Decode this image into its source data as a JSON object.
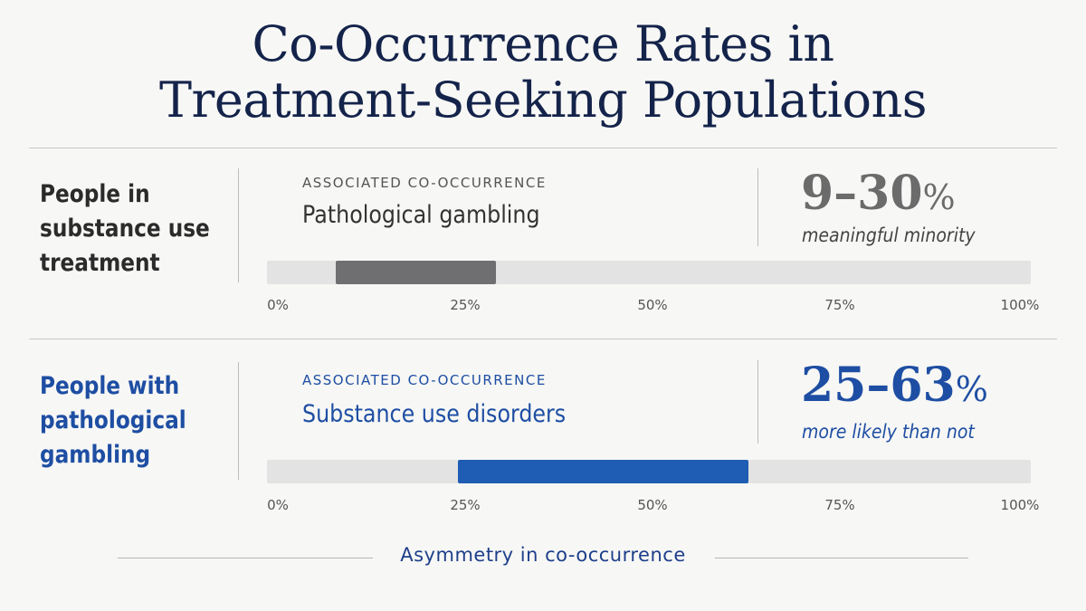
{
  "title_lines": [
    "Co-Occurrence Rates in",
    "Treatment-Seeking Populations"
  ],
  "colors": {
    "grey_bar": "#6f6f71",
    "blue_bar": "#1f5cb3",
    "dark_text": "#2b2b2b",
    "blue_text": "#1e4ea3"
  },
  "chart_data": {
    "type": "bar",
    "title": "Co-Occurrence Rates in Treatment-Seeking Populations",
    "xlim": [
      0,
      100
    ],
    "tick_labels": [
      "0%",
      "25%",
      "50%",
      "75%",
      "100%"
    ],
    "groups": [
      {
        "label_lines": [
          "People in",
          "substance use",
          "treatment"
        ],
        "kicker": "ASSOCIATED CO-OCCURRENCE",
        "item": "Pathological gambling",
        "range_text": "9–30",
        "percent_sign": "%",
        "description": "meaningful minority",
        "range": [
          9,
          30
        ],
        "color": "#6f6f71"
      },
      {
        "label_lines": [
          "People with",
          "pathological",
          "gambling"
        ],
        "kicker": "ASSOCIATED CO-OCCURRENCE",
        "item": "Substance use disorders",
        "range_text": "25–63",
        "percent_sign": "%",
        "description": "more likely than not",
        "range": [
          25,
          63
        ],
        "color": "#1f5cb3"
      }
    ],
    "footer": "Asymmetry in co-occurrence"
  }
}
